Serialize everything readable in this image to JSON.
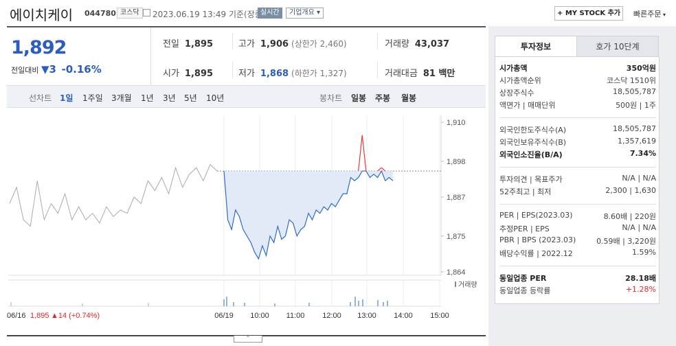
{
  "header": {
    "stock_name": "에이치케이",
    "stock_code": "044780",
    "market_badge": "코스닥",
    "datetime": "2023.06.19 13:49",
    "basis": "기준(장중)",
    "realtime_badge": "실시간",
    "company_overview_label": "기업개요",
    "mystock_label": "+ MY STOCK 추가",
    "quick_order_label": "빠른주문"
  },
  "price": {
    "current": "1,892",
    "change_label": "전일대비",
    "change_value": "3",
    "change_pct": "-0.16%"
  },
  "stats": {
    "prev_close_label": "전일",
    "prev_close": "1,895",
    "open_label": "시가",
    "open": "1,895",
    "high_label": "고가",
    "high": "1,906",
    "upper_limit": "(상한가 2,460)",
    "low_label": "저가",
    "low": "1,868",
    "lower_limit": "(하한가 1,327)",
    "volume_label": "거래량",
    "volume": "43,037",
    "amount_label": "거래대금",
    "amount": "81 백만"
  },
  "chart_tabs": {
    "line_label": "선차트",
    "periods": [
      "1일",
      "1주일",
      "3개월",
      "1년",
      "3년",
      "5년",
      "10년"
    ],
    "candle_label": "봉차트",
    "candle_periods": [
      "일봉",
      "주봉",
      "월봉"
    ]
  },
  "right_panel": {
    "tab_active": "투자정보",
    "tab_other": "호가 10단계",
    "rows": [
      {
        "label": "시가총액",
        "value": "350억원",
        "bold": true
      },
      {
        "label": "시가총액순위",
        "value": "코스닥 1510위"
      },
      {
        "label": "상장주식수",
        "value": "18,505,787"
      },
      {
        "label": "액면가 | 매매단위",
        "value": "500원 | 1주"
      },
      {
        "label": "외국인한도주식수(A)",
        "value": "18,505,787"
      },
      {
        "label": "외국인보유주식수(B)",
        "value": "1,357,619"
      },
      {
        "label": "외국인소진율(B/A)",
        "value": "7.34%",
        "bold": true
      },
      {
        "label": "투자의견 | 목표주가",
        "value": "N/A | N/A"
      },
      {
        "label": "52주최고 | 최저",
        "value": "2,300 | 1,630"
      },
      {
        "label": "PER | EPS(2023.03)",
        "value": "8.60배 | 220원"
      },
      {
        "label": "추정PER | EPS",
        "value": "N/A | N/A"
      },
      {
        "label": "PBR | BPS (2023.03)",
        "value": "0.59배 | 3,220원"
      },
      {
        "label": "배당수익률 | 2022.12",
        "value": "1.59%"
      },
      {
        "label": "동일업종 PER",
        "value": "28.18배",
        "bold": true
      },
      {
        "label": "동일업종 등락률",
        "value": "+1.28%",
        "red": true
      }
    ]
  },
  "chart_data": {
    "type": "line",
    "y_ticks": [
      "1,910",
      "1,898",
      "1,887",
      "1,875",
      "1,864"
    ],
    "x_ticks": [
      "06/19",
      "10:00",
      "11:00",
      "12:00",
      "13:00",
      "14:00",
      "15:00"
    ],
    "prev_day_label": "06/16",
    "prev_day_close": "1,895",
    "prev_day_change": "▲14 (+0.74%)",
    "volume_legend": "거래량",
    "ylim": [
      1864,
      1910
    ],
    "baseline": 1895,
    "prev_day_series": [
      1885,
      1890,
      1880,
      1878,
      1892,
      1880,
      1885,
      1882,
      1888,
      1880,
      1884,
      1880,
      1882,
      1879,
      1884,
      1881,
      1883,
      1882,
      1887,
      1885,
      1892,
      1889,
      1893,
      1888,
      1896,
      1890,
      1894,
      1896,
      1892,
      1897,
      1895
    ],
    "today_series": [
      1895,
      1880,
      1877,
      1883,
      1881,
      1877,
      1875,
      1873,
      1870,
      1868,
      1872,
      1869,
      1875,
      1873,
      1878,
      1874,
      1875,
      1880,
      1879,
      1875,
      1877,
      1878,
      1882,
      1880,
      1883,
      1882,
      1884,
      1883,
      1885,
      1884,
      1886,
      1888,
      1888,
      1893,
      1892,
      1893,
      1906,
      1895,
      1893,
      1894,
      1893,
      1896,
      1892,
      1893,
      1892
    ]
  }
}
